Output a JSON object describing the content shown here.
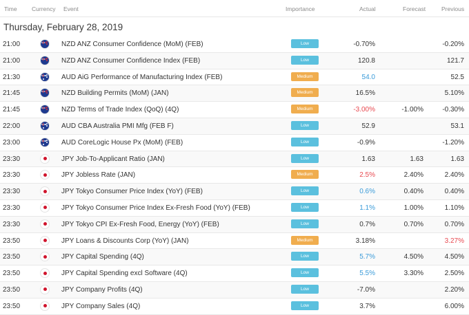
{
  "header": {
    "time": "Time",
    "currency": "Currency",
    "event": "Event",
    "importance": "Importance",
    "actual": "Actual",
    "forecast": "Forecast",
    "previous": "Previous"
  },
  "date_heading": "Thursday, February 28, 2019",
  "colors": {
    "low": "#5bc0de",
    "medium": "#f0ad4e",
    "up": "#3a9bd9",
    "down": "#e8484f"
  },
  "rows": [
    {
      "time": "21:00",
      "flag": "nz-flag-icon",
      "event": "NZD ANZ Consumer Confidence (MoM) (FEB)",
      "importance": "Low",
      "actual": "-0.70%",
      "actual_trend": "neutral",
      "forecast": "",
      "previous": "-0.20%",
      "previous_trend": "neutral"
    },
    {
      "time": "21:00",
      "flag": "nz-flag-icon",
      "event": "NZD ANZ Consumer Confidence Index (FEB)",
      "importance": "Low",
      "actual": "120.8",
      "actual_trend": "neutral",
      "forecast": "",
      "previous": "121.7",
      "previous_trend": "neutral"
    },
    {
      "time": "21:30",
      "flag": "au-flag-icon",
      "event": "AUD AiG Performance of Manufacturing Index (FEB)",
      "importance": "Medium",
      "actual": "54.0",
      "actual_trend": "up",
      "forecast": "",
      "previous": "52.5",
      "previous_trend": "neutral"
    },
    {
      "time": "21:45",
      "flag": "nz-flag-icon",
      "event": "NZD Building Permits (MoM) (JAN)",
      "importance": "Medium",
      "actual": "16.5%",
      "actual_trend": "neutral",
      "forecast": "",
      "previous": "5.10%",
      "previous_trend": "neutral"
    },
    {
      "time": "21:45",
      "flag": "nz-flag-icon",
      "event": "NZD Terms of Trade Index (QoQ) (4Q)",
      "importance": "Medium",
      "actual": "-3.00%",
      "actual_trend": "down",
      "forecast": "-1.00%",
      "previous": "-0.30%",
      "previous_trend": "neutral"
    },
    {
      "time": "22:00",
      "flag": "au-flag-icon",
      "event": "AUD CBA Australia PMI Mfg (FEB F)",
      "importance": "Low",
      "actual": "52.9",
      "actual_trend": "neutral",
      "forecast": "",
      "previous": "53.1",
      "previous_trend": "neutral"
    },
    {
      "time": "23:00",
      "flag": "au-flag-icon",
      "event": "AUD CoreLogic House Px (MoM) (FEB)",
      "importance": "Low",
      "actual": "-0.9%",
      "actual_trend": "neutral",
      "forecast": "",
      "previous": "-1.20%",
      "previous_trend": "neutral"
    },
    {
      "time": "23:30",
      "flag": "jp-flag-icon",
      "event": "JPY Job-To-Applicant Ratio (JAN)",
      "importance": "Low",
      "actual": "1.63",
      "actual_trend": "neutral",
      "forecast": "1.63",
      "previous": "1.63",
      "previous_trend": "neutral"
    },
    {
      "time": "23:30",
      "flag": "jp-flag-icon",
      "event": "JPY Jobless Rate (JAN)",
      "importance": "Medium",
      "actual": "2.5%",
      "actual_trend": "down",
      "forecast": "2.40%",
      "previous": "2.40%",
      "previous_trend": "neutral"
    },
    {
      "time": "23:30",
      "flag": "jp-flag-icon",
      "event": "JPY Tokyo Consumer Price Index (YoY) (FEB)",
      "importance": "Low",
      "actual": "0.6%",
      "actual_trend": "up",
      "forecast": "0.40%",
      "previous": "0.40%",
      "previous_trend": "neutral"
    },
    {
      "time": "23:30",
      "flag": "jp-flag-icon",
      "event": "JPY Tokyo Consumer Price Index Ex-Fresh Food (YoY) (FEB)",
      "importance": "Low",
      "actual": "1.1%",
      "actual_trend": "up",
      "forecast": "1.00%",
      "previous": "1.10%",
      "previous_trend": "neutral"
    },
    {
      "time": "23:30",
      "flag": "jp-flag-icon",
      "event": "JPY Tokyo CPI Ex-Fresh Food, Energy (YoY) (FEB)",
      "importance": "Low",
      "actual": "0.7%",
      "actual_trend": "neutral",
      "forecast": "0.70%",
      "previous": "0.70%",
      "previous_trend": "neutral"
    },
    {
      "time": "23:50",
      "flag": "jp-flag-icon",
      "event": "JPY Loans & Discounts Corp (YoY) (JAN)",
      "importance": "Medium",
      "actual": "3.18%",
      "actual_trend": "neutral",
      "forecast": "",
      "previous": "3.27%",
      "previous_trend": "down"
    },
    {
      "time": "23:50",
      "flag": "jp-flag-icon",
      "event": "JPY Capital Spending (4Q)",
      "importance": "Low",
      "actual": "5.7%",
      "actual_trend": "up",
      "forecast": "4.50%",
      "previous": "4.50%",
      "previous_trend": "neutral"
    },
    {
      "time": "23:50",
      "flag": "jp-flag-icon",
      "event": "JPY Capital Spending excl Software (4Q)",
      "importance": "Low",
      "actual": "5.5%",
      "actual_trend": "up",
      "forecast": "3.30%",
      "previous": "2.50%",
      "previous_trend": "neutral"
    },
    {
      "time": "23:50",
      "flag": "jp-flag-icon",
      "event": "JPY Company Profits (4Q)",
      "importance": "Low",
      "actual": "-7.0%",
      "actual_trend": "neutral",
      "forecast": "",
      "previous": "2.20%",
      "previous_trend": "neutral"
    },
    {
      "time": "23:50",
      "flag": "jp-flag-icon",
      "event": "JPY Company Sales (4Q)",
      "importance": "Low",
      "actual": "3.7%",
      "actual_trend": "neutral",
      "forecast": "",
      "previous": "6.00%",
      "previous_trend": "neutral"
    }
  ]
}
